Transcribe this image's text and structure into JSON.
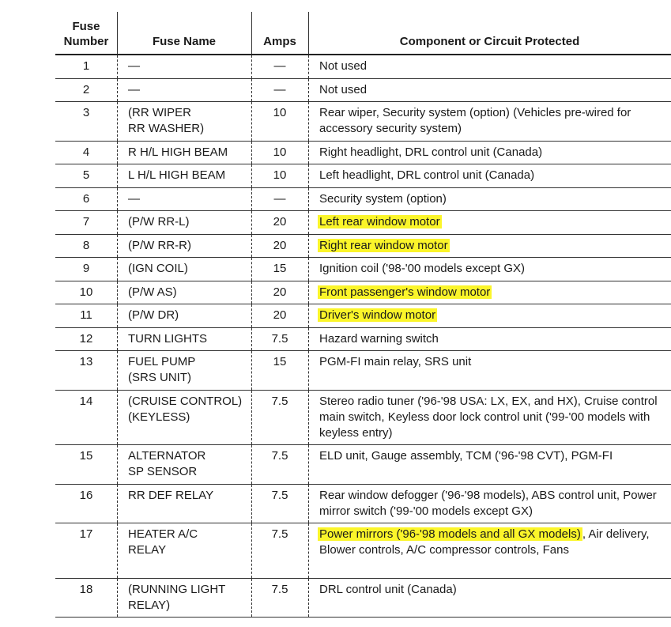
{
  "headers": {
    "number": "Fuse\nNumber",
    "name": "Fuse Name",
    "amps": "Amps",
    "component": "Component or Circuit Protected"
  },
  "highlight_color": "#fbf52a",
  "rows": [
    {
      "number": "1",
      "name": "—",
      "amps": "—",
      "highlight": "",
      "component": "Not used"
    },
    {
      "number": "2",
      "name": "—",
      "amps": "—",
      "highlight": "",
      "component": "Not used"
    },
    {
      "number": "3",
      "name": "(RR WIPER\nRR WASHER)",
      "amps": "10",
      "highlight": "",
      "component": "Rear wiper, Security system (option) (Vehicles pre-wired for accessory security system)"
    },
    {
      "number": "4",
      "name": "R H/L HIGH BEAM",
      "amps": "10",
      "highlight": "",
      "component": "Right headlight, DRL control unit (Canada)"
    },
    {
      "number": "5",
      "name": "L H/L HIGH BEAM",
      "amps": "10",
      "highlight": "",
      "component": "Left headlight, DRL control unit (Canada)"
    },
    {
      "number": "6",
      "name": "—",
      "amps": "—",
      "highlight": "",
      "component": "Security system (option)"
    },
    {
      "number": "7",
      "name": "(P/W RR-L)",
      "amps": "20",
      "highlight": "Left rear window motor",
      "component": ""
    },
    {
      "number": "8",
      "name": "(P/W RR-R)",
      "amps": "20",
      "highlight": "Right rear window motor",
      "component": ""
    },
    {
      "number": "9",
      "name": "(IGN COIL)",
      "amps": "15",
      "highlight": "",
      "component": "Ignition coil ('98-'00 models except GX)"
    },
    {
      "number": "10",
      "name": "(P/W AS)",
      "amps": "20",
      "highlight": "Front passenger's window motor",
      "component": ""
    },
    {
      "number": "11",
      "name": "(P/W DR)",
      "amps": "20",
      "highlight": "Driver's window motor",
      "component": ""
    },
    {
      "number": "12",
      "name": "TURN LIGHTS",
      "amps": "7.5",
      "highlight": "",
      "component": "Hazard warning switch"
    },
    {
      "number": "13",
      "name": "FUEL PUMP\n(SRS UNIT)",
      "amps": "15",
      "highlight": "",
      "component": "PGM-FI main relay, SRS unit"
    },
    {
      "number": "14",
      "name": "(CRUISE CONTROL)\n(KEYLESS)",
      "amps": "7.5",
      "highlight": "",
      "component": "Stereo radio tuner ('96-'98 USA: LX, EX, and HX), Cruise control main switch, Keyless door lock control unit ('99-'00 models with keyless entry)"
    },
    {
      "number": "15",
      "name": "ALTERNATOR\nSP SENSOR",
      "amps": "7.5",
      "highlight": "",
      "component": "ELD unit, Gauge assembly, TCM ('96-'98 CVT), PGM-FI"
    },
    {
      "number": "16",
      "name": "RR DEF RELAY",
      "amps": "7.5",
      "highlight": "",
      "component": "Rear window defogger ('96-'98 models), ABS control unit, Power mirror switch ('99-'00 models except GX)"
    },
    {
      "number": "17",
      "name": "HEATER A/C\nRELAY",
      "amps": "7.5",
      "highlight": "Power mirrors ('96-'98 models and all GX models)",
      "component": ", Air delivery, Blower controls, A/C compressor controls, Fans"
    },
    {
      "number": "18",
      "name": "(RUNNING LIGHT\nRELAY)",
      "amps": "7.5",
      "highlight": "",
      "component": "DRL control unit (Canada)"
    }
  ]
}
